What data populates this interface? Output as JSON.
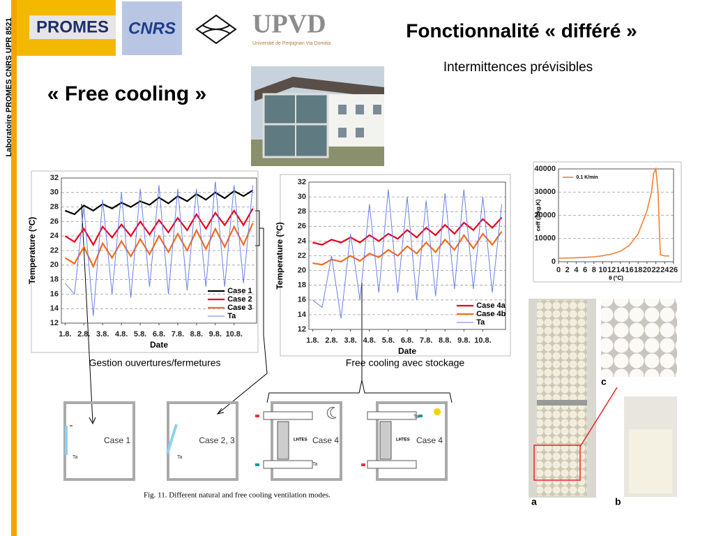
{
  "header": {
    "title": "Fonctionnalité « différé »",
    "subtitle": "Intermittences prévisibles",
    "heading": "« Free cooling »",
    "side_label": "Laboratoire PROMES CNRS UPR 8521"
  },
  "logos": {
    "promes": "PROMES",
    "cnrs": "CNRS",
    "upvd": "UPVD",
    "upvd_sub": "Université de Perpignan Via Domitia"
  },
  "captions": {
    "left": "Gestion ouvertures/fermetures",
    "middle": "Free cooling avec stockage"
  },
  "figure": {
    "caption": "Fig. 11. Different natural and free cooling ventilation modes.",
    "cases": [
      "Case 1",
      "Case 2, 3",
      "Case 4",
      "Case 4"
    ],
    "lhtes": "LHTES",
    "ta": "Ta"
  },
  "photos": {
    "labels": [
      "a",
      "b",
      "c"
    ]
  },
  "chart_data": [
    {
      "type": "line",
      "xlabel": "Date",
      "ylabel": "Temperature (°C)",
      "x": [
        0,
        0.5,
        1,
        1.5,
        2,
        2.5,
        3,
        3.5,
        4,
        4.5,
        5,
        5.5,
        6,
        6.5,
        7,
        7.5,
        8,
        8.5,
        9,
        9.5,
        10
      ],
      "xlim": [
        -0.2,
        10.2
      ],
      "xticks": [
        {
          "value": 0,
          "label": "1.8."
        },
        {
          "value": 1,
          "label": "2.8."
        },
        {
          "value": 2,
          "label": "3.8."
        },
        {
          "value": 3,
          "label": "4.8."
        },
        {
          "value": 4,
          "label": "5.8."
        },
        {
          "value": 5,
          "label": "6.8."
        },
        {
          "value": 6,
          "label": "7.8."
        },
        {
          "value": 7,
          "label": "8.8."
        },
        {
          "value": 8,
          "label": "9.8."
        },
        {
          "value": 9,
          "label": "10.8."
        }
      ],
      "ylim": [
        12,
        32
      ],
      "yticks": [
        12,
        14,
        16,
        18,
        20,
        22,
        24,
        26,
        28,
        30,
        32
      ],
      "grid": true,
      "legend": "lower right",
      "series": [
        {
          "name": "Case 1",
          "color": "#000000",
          "values": [
            27.5,
            27,
            28.2,
            27.5,
            28.4,
            27.8,
            28.6,
            28,
            28.8,
            28.3,
            29.3,
            28.5,
            29.5,
            28.8,
            29.8,
            29,
            30,
            29.2,
            30.2,
            29.5,
            30.3
          ]
        },
        {
          "name": "Case 2",
          "color": "#e8001c",
          "values": [
            24,
            23.2,
            25,
            22.8,
            25.3,
            23.8,
            25.6,
            24,
            26,
            24.2,
            26.2,
            24.5,
            26.5,
            24.8,
            27,
            25,
            27.2,
            25.5,
            27.5,
            25.5,
            27.8
          ]
        },
        {
          "name": "Case 3",
          "color": "#f26c1a",
          "values": [
            21,
            20.2,
            22.5,
            19.8,
            23,
            21,
            23.3,
            21.2,
            23.6,
            21.5,
            24,
            21.8,
            24.3,
            22,
            24.8,
            22.2,
            25,
            22.5,
            25.3,
            22.8,
            25.8
          ]
        },
        {
          "name": "Ta",
          "color": "#6a7ee6",
          "values": [
            17.5,
            16,
            28,
            13,
            29,
            16,
            30,
            15.5,
            30.5,
            17,
            31,
            16,
            30.5,
            16.5,
            30.5,
            17,
            31.5,
            17,
            31,
            17.5,
            31
          ]
        }
      ]
    },
    {
      "type": "line",
      "xlabel": "Date",
      "ylabel": "Temperature (°C)",
      "x": [
        0,
        0.5,
        1,
        1.5,
        2,
        2.5,
        3,
        3.5,
        4,
        4.5,
        5,
        5.5,
        6,
        6.5,
        7,
        7.5,
        8,
        8.5,
        9,
        9.5,
        10
      ],
      "xlim": [
        -0.2,
        10.2
      ],
      "xticks": [
        {
          "value": 0,
          "label": "1.8."
        },
        {
          "value": 1,
          "label": "2.8."
        },
        {
          "value": 2,
          "label": "3.8."
        },
        {
          "value": 3,
          "label": "4.8."
        },
        {
          "value": 4,
          "label": "5.8."
        },
        {
          "value": 5,
          "label": "6.8."
        },
        {
          "value": 6,
          "label": "7.8."
        },
        {
          "value": 7,
          "label": "8.8."
        },
        {
          "value": 8,
          "label": "9.8."
        },
        {
          "value": 9,
          "label": "10.8."
        }
      ],
      "ylim": [
        12,
        32
      ],
      "yticks": [
        12,
        14,
        16,
        18,
        20,
        22,
        24,
        26,
        28,
        30,
        32
      ],
      "grid": true,
      "legend": "lower right",
      "series": [
        {
          "name": "Case 4a",
          "color": "#e8001c",
          "values": [
            23.8,
            23.5,
            24.2,
            23.8,
            24.5,
            23.8,
            24.8,
            24,
            25,
            24.3,
            25.5,
            24.5,
            25.8,
            24.8,
            26.2,
            25,
            26.5,
            25.5,
            27,
            25.8,
            27.2
          ]
        },
        {
          "name": "Case 4b",
          "color": "#f26c1a",
          "values": [
            21,
            20.8,
            21.5,
            21.2,
            22,
            21.3,
            22.3,
            21.8,
            22.8,
            22,
            23.3,
            22.3,
            23.8,
            22.5,
            24.2,
            22.8,
            24.8,
            23,
            25,
            23.5,
            25.3
          ]
        },
        {
          "name": "Ta",
          "color": "#6a7ee6",
          "values": [
            16,
            15,
            22,
            13.5,
            25,
            16,
            29,
            17,
            31,
            17,
            30,
            16,
            29.5,
            16.5,
            30.5,
            17.5,
            31,
            17.5,
            30,
            17,
            29
          ]
        }
      ]
    },
    {
      "type": "line",
      "xlabel": "θ (°C)",
      "ylabel": "ceff (J/kg.K)",
      "x": [
        0,
        2,
        4,
        6,
        8,
        10,
        12,
        14,
        16,
        18,
        20,
        21,
        21.5,
        22,
        22.5,
        23,
        24,
        25
      ],
      "xlim": [
        0,
        26
      ],
      "xticks": [
        0,
        2,
        4,
        6,
        8,
        10,
        12,
        14,
        16,
        18,
        20,
        22,
        24,
        26
      ],
      "ylim": [
        0,
        40000
      ],
      "yticks": [
        0,
        10000,
        20000,
        30000,
        40000
      ],
      "grid": true,
      "legend": "upper left",
      "series": [
        {
          "name": "0.1 K/min",
          "color": "#f08030",
          "values": [
            1500,
            1600,
            1700,
            1900,
            2100,
            2600,
            3300,
            4500,
            7000,
            12000,
            22000,
            30000,
            38000,
            40000,
            30000,
            3000,
            2500,
            2500
          ]
        }
      ]
    }
  ]
}
